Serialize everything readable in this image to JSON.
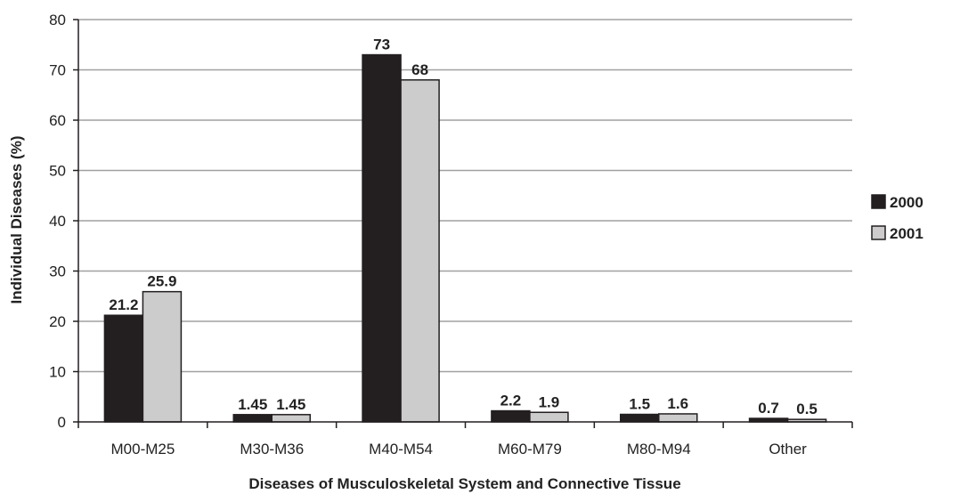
{
  "chart_data": {
    "type": "bar",
    "title": "",
    "xlabel": "Diseases of Musculoskeletal System and Connective Tissue",
    "ylabel": "Individual Diseases (%)",
    "ylim": [
      0,
      80
    ],
    "yticks": [
      0,
      10,
      20,
      30,
      40,
      50,
      60,
      70,
      80
    ],
    "grid": true,
    "legend_position": "right",
    "categories": [
      "M00-M25",
      "M30-M36",
      "M40-M54",
      "M60-M79",
      "M80-M94",
      "Other"
    ],
    "series": [
      {
        "name": "2000",
        "color": "#231f20",
        "values": [
          21.2,
          1.45,
          73,
          2.2,
          1.5,
          0.7
        ],
        "labels": [
          "21.2",
          "1.45",
          "73",
          "2.2",
          "1.5",
          "0.7"
        ]
      },
      {
        "name": "2001",
        "color": "#cccccc",
        "values": [
          25.9,
          1.45,
          68,
          1.9,
          1.6,
          0.5
        ],
        "labels": [
          "25.9",
          "1.45",
          "68",
          "1.9",
          "1.6",
          "0.5"
        ]
      }
    ]
  }
}
